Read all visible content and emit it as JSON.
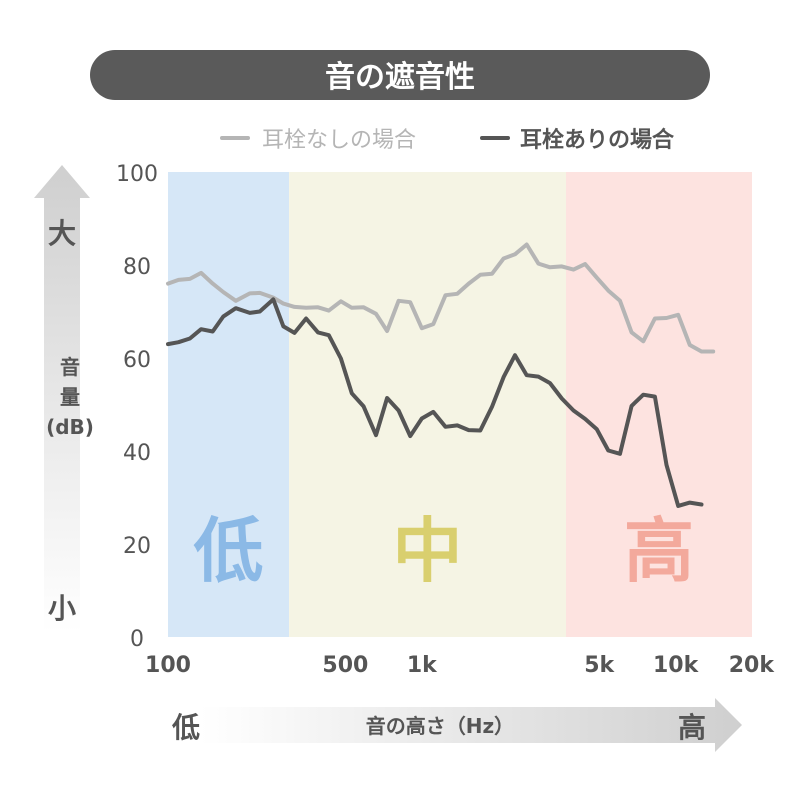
{
  "title": "音の遮音性",
  "y_axis": {
    "label_line1": "音",
    "label_line2": "量",
    "label_line3": "(dB)",
    "top_label": "大",
    "bottom_label": "小"
  },
  "x_axis": {
    "label": "音の高さ（Hz）",
    "left_label": "低",
    "right_label": "高"
  },
  "bands": [
    {
      "label": "低",
      "color": "#d6e7f7",
      "text_color": "#8bb9e6"
    },
    {
      "label": "中",
      "color": "#f5f4e4",
      "text_color": "#d9cf6e"
    },
    {
      "label": "高",
      "color": "#fde3e0",
      "text_color": "#f3a99c"
    }
  ],
  "colors": {
    "title_bg": "#5a5a5a",
    "without_line": "#b5b5b5",
    "with_line": "#555555",
    "axis_text": "#555555"
  },
  "chart_data": {
    "type": "line",
    "x_scale": "log",
    "xlim": [
      100,
      20000
    ],
    "ylim": [
      0,
      100
    ],
    "yticks": [
      0,
      20,
      40,
      60,
      80,
      100
    ],
    "xticks": [
      {
        "value": 100,
        "label": "100"
      },
      {
        "value": 500,
        "label": "500"
      },
      {
        "value": 1000,
        "label": "1k"
      },
      {
        "value": 5000,
        "label": "5k"
      },
      {
        "value": 10000,
        "label": "10k"
      },
      {
        "value": 20000,
        "label": "20k"
      }
    ],
    "band_boundaries": [
      100,
      300,
      3700,
      20000
    ],
    "series": [
      {
        "name": "耳栓なしの場合",
        "points": [
          [
            100,
            76
          ],
          [
            110,
            76.8
          ],
          [
            122,
            77
          ],
          [
            135,
            78.3
          ],
          [
            150,
            76
          ],
          [
            165,
            74.2
          ],
          [
            185,
            72.3
          ],
          [
            210,
            73.9
          ],
          [
            230,
            74
          ],
          [
            260,
            73
          ],
          [
            285,
            71.7
          ],
          [
            315,
            71
          ],
          [
            350,
            70.8
          ],
          [
            390,
            70.9
          ],
          [
            430,
            70.2
          ],
          [
            480,
            72.2
          ],
          [
            530,
            70.8
          ],
          [
            590,
            70.9
          ],
          [
            660,
            69.5
          ],
          [
            730,
            65.8
          ],
          [
            810,
            72.3
          ],
          [
            900,
            72
          ],
          [
            1000,
            66.4
          ],
          [
            1110,
            67.3
          ],
          [
            1240,
            73.5
          ],
          [
            1380,
            73.8
          ],
          [
            1530,
            76
          ],
          [
            1700,
            77.9
          ],
          [
            1890,
            78.1
          ],
          [
            2100,
            81.4
          ],
          [
            2330,
            82.3
          ],
          [
            2590,
            84.4
          ],
          [
            2880,
            80.3
          ],
          [
            3200,
            79.5
          ],
          [
            3560,
            79.7
          ],
          [
            3960,
            79
          ],
          [
            4400,
            80.2
          ],
          [
            4890,
            77.3
          ],
          [
            5430,
            74.5
          ],
          [
            6040,
            72.3
          ],
          [
            6710,
            65.5
          ],
          [
            7460,
            63.6
          ],
          [
            8290,
            68.5
          ],
          [
            9210,
            68.6
          ],
          [
            10240,
            69.3
          ],
          [
            11380,
            62.8
          ],
          [
            12650,
            61.4
          ],
          [
            14060,
            61.4
          ]
        ]
      },
      {
        "name": "耳栓ありの場合",
        "points": [
          [
            100,
            63
          ],
          [
            110,
            63.4
          ],
          [
            122,
            64.2
          ],
          [
            135,
            66.2
          ],
          [
            150,
            65.7
          ],
          [
            165,
            68.9
          ],
          [
            185,
            70.7
          ],
          [
            210,
            69.7
          ],
          [
            230,
            70
          ],
          [
            260,
            72.6
          ],
          [
            285,
            66.8
          ],
          [
            315,
            65.4
          ],
          [
            350,
            68.5
          ],
          [
            390,
            65.5
          ],
          [
            430,
            64.9
          ],
          [
            480,
            59.9
          ],
          [
            530,
            52.4
          ],
          [
            590,
            49.6
          ],
          [
            660,
            43.4
          ],
          [
            730,
            51.4
          ],
          [
            810,
            48.7
          ],
          [
            900,
            43.2
          ],
          [
            1000,
            47
          ],
          [
            1110,
            48.4
          ],
          [
            1240,
            45.2
          ],
          [
            1380,
            45.5
          ],
          [
            1530,
            44.5
          ],
          [
            1700,
            44.4
          ],
          [
            1890,
            49.5
          ],
          [
            2100,
            55.9
          ],
          [
            2330,
            60.6
          ],
          [
            2590,
            56.3
          ],
          [
            2880,
            56
          ],
          [
            3200,
            54.6
          ],
          [
            3560,
            51.3
          ],
          [
            3960,
            48.7
          ],
          [
            4400,
            46.9
          ],
          [
            4890,
            44.7
          ],
          [
            5430,
            40.1
          ],
          [
            6040,
            39.4
          ],
          [
            6710,
            49.7
          ],
          [
            7460,
            52.1
          ],
          [
            8290,
            51.7
          ],
          [
            9210,
            37
          ],
          [
            10240,
            28.2
          ],
          [
            11380,
            28.9
          ],
          [
            12650,
            28.5
          ]
        ]
      }
    ]
  }
}
